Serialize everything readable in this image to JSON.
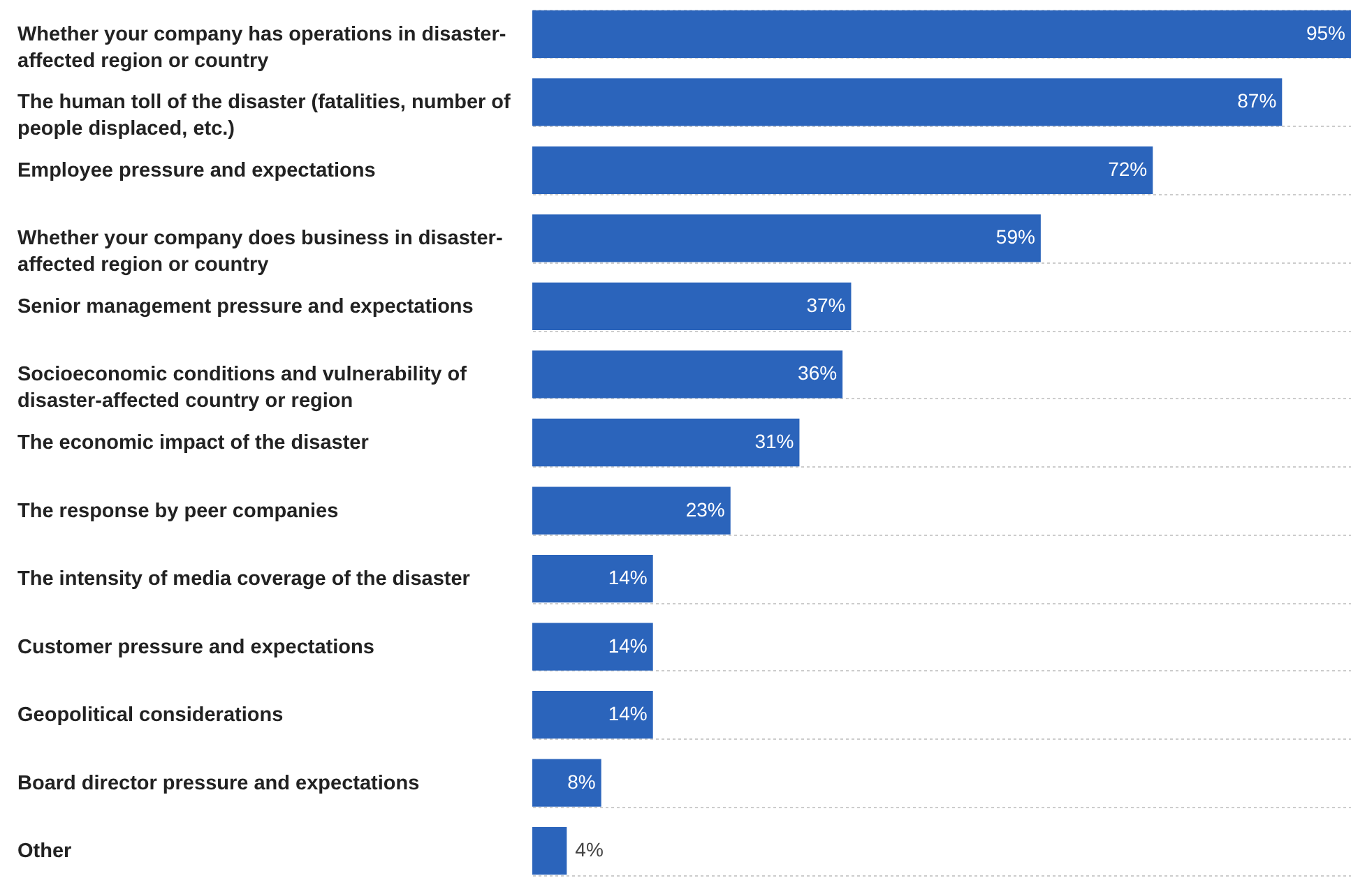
{
  "chart_data": {
    "type": "bar",
    "orientation": "horizontal",
    "categories": [
      "Whether your company has operations in disaster-affected region or country",
      "The human toll of the disaster (fatalities, number of people displaced, etc.)",
      "Employee pressure and expectations",
      "Whether your company does business in disaster-affected region or country",
      "Senior management pressure and expectations",
      "Socioeconomic conditions and vulnerability of disaster-affected country or region",
      "The economic impact of the disaster",
      "The response by peer companies",
      "The intensity of media coverage of the disaster",
      "Customer pressure and expectations",
      "Geopolitical considerations",
      "Board director pressure and expectations",
      "Other"
    ],
    "values": [
      95,
      87,
      72,
      59,
      37,
      36,
      31,
      23,
      14,
      14,
      14,
      8,
      4
    ],
    "value_labels": [
      "95%",
      "87%",
      "72%",
      "59%",
      "37%",
      "36%",
      "31%",
      "23%",
      "14%",
      "14%",
      "14%",
      "8%",
      "4%"
    ],
    "color": "#2b64bb",
    "grid": "y",
    "tick_labels": "y"
  }
}
